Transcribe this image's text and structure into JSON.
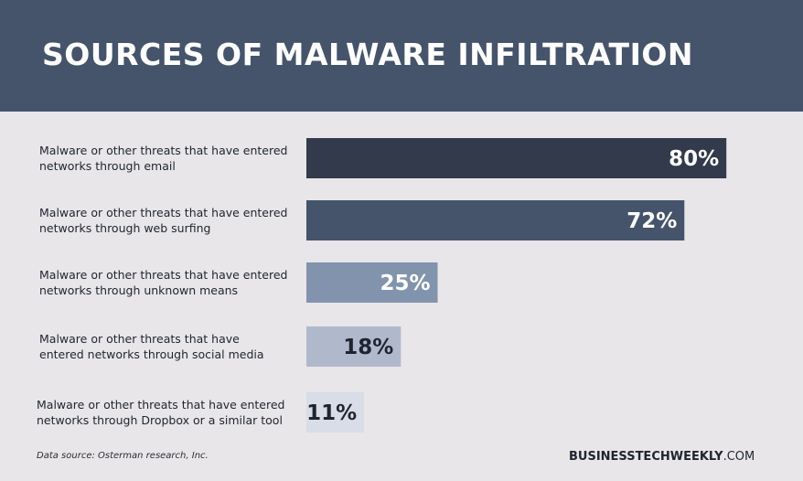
{
  "chart_data": {
    "type": "bar",
    "orientation": "horizontal",
    "title": "SOURCES OF MALWARE INFILTRATION",
    "categories": [
      [
        "Malware or other threats that have entered",
        "networks through email"
      ],
      [
        "Malware or other threats that have entered",
        "networks through web surfing"
      ],
      [
        "Malware or other threats that have entered",
        "networks through unknown means"
      ],
      [
        "Malware or other threats that have",
        "entered networks through social media"
      ],
      [
        "Malware or other threats that have entered",
        "networks through Dropbox or a similar tool"
      ]
    ],
    "values": [
      80,
      72,
      25,
      18,
      11
    ],
    "value_labels": [
      "80%",
      "72%",
      "25%",
      "18%",
      "11%"
    ],
    "xlim": [
      0,
      100
    ],
    "bar_colors": [
      "#323a4b",
      "#45546b",
      "#8293ad",
      "#b0b9cc",
      "#d8dde8"
    ],
    "label_colors": [
      "#ffffff",
      "#ffffff",
      "#ffffff",
      "#1f2430",
      "#1f2430"
    ],
    "grid": false,
    "legend": "none"
  },
  "footer": {
    "source": "Data source: Osterman research, Inc.",
    "brand_bold": "BUSINESSTECHWEEKLY",
    "brand_rest": ".COM"
  }
}
